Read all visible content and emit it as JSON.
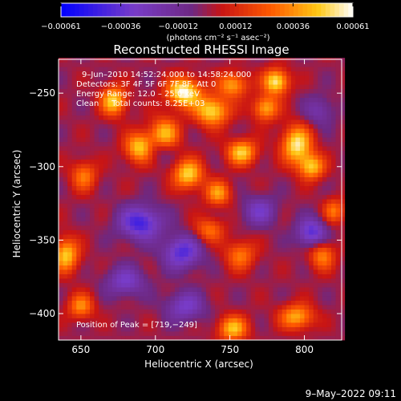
{
  "chart_data": {
    "type": "heatmap",
    "title": "Reconstructed RHESSI Image",
    "xlabel": "Heliocentric X (arcsec)",
    "ylabel": "Heliocentric Y (arcsec)",
    "xlim": [
      635,
      825
    ],
    "ylim": [
      -418,
      -227
    ],
    "xticks": [
      650,
      700,
      750,
      800
    ],
    "yticks": [
      -250,
      -300,
      -350,
      -400
    ],
    "xtick_labels": [
      "650",
      "700",
      "750",
      "800"
    ],
    "ytick_labels": [
      "−250",
      "−300",
      "−350",
      "−400"
    ],
    "colorbar": {
      "range": [
        -0.00061,
        0.00061
      ],
      "ticks": [
        -0.00061,
        -0.00036,
        -0.00012,
        0.00012,
        0.00036,
        0.00061
      ],
      "tick_labels": [
        "−0.00061",
        "−0.00036",
        "−0.00012",
        "0.00012",
        "0.00036",
        "0.00061"
      ],
      "unit_label": "(photons cm⁻² s⁻¹ asec⁻²)"
    },
    "annotations": {
      "time_range": "9–Jun–2010 14:52:24.000 to 14:58:24.000",
      "detectors": "Detectors: 3F 4F 5F 6F 7F 8F, Att 0",
      "energy_range": "Energy Range: 12.0 – 25.0 keV",
      "algorithm": "Clean     Total counts: 8.25E+03",
      "peak": "Position of Peak = [719,−249]"
    },
    "peak": {
      "x": 719,
      "y": -249
    },
    "sources": [
      {
        "x": 672,
        "y": -255,
        "amp": 0.0005,
        "sx": 6,
        "sy": 7
      },
      {
        "x": 690,
        "y": -287,
        "amp": 0.00055,
        "sx": 7,
        "sy": 7
      },
      {
        "x": 706,
        "y": -278,
        "amp": 0.00045,
        "sx": 7,
        "sy": 8
      },
      {
        "x": 719,
        "y": -249,
        "amp": 0.00061,
        "sx": 8,
        "sy": 7
      },
      {
        "x": 738,
        "y": -262,
        "amp": 0.00052,
        "sx": 8,
        "sy": 7
      },
      {
        "x": 752,
        "y": -244,
        "amp": 0.0004,
        "sx": 7,
        "sy": 6
      },
      {
        "x": 781,
        "y": -242,
        "amp": 0.00056,
        "sx": 6,
        "sy": 6
      },
      {
        "x": 774,
        "y": -260,
        "amp": 0.00042,
        "sx": 6,
        "sy": 6
      },
      {
        "x": 758,
        "y": -290,
        "amp": 0.00048,
        "sx": 7,
        "sy": 6
      },
      {
        "x": 795,
        "y": -285,
        "amp": 0.00055,
        "sx": 7,
        "sy": 9
      },
      {
        "x": 805,
        "y": -300,
        "amp": 0.00045,
        "sx": 6,
        "sy": 6
      },
      {
        "x": 722,
        "y": -305,
        "amp": 0.0005,
        "sx": 7,
        "sy": 7
      },
      {
        "x": 742,
        "y": -318,
        "amp": 0.00038,
        "sx": 6,
        "sy": 6
      },
      {
        "x": 652,
        "y": -306,
        "amp": 0.00032,
        "sx": 6,
        "sy": 7
      },
      {
        "x": 640,
        "y": -360,
        "amp": 0.00048,
        "sx": 6,
        "sy": 8
      },
      {
        "x": 650,
        "y": -395,
        "amp": 0.00035,
        "sx": 6,
        "sy": 6
      },
      {
        "x": 736,
        "y": -343,
        "amp": 0.0003,
        "sx": 7,
        "sy": 6
      },
      {
        "x": 757,
        "y": -360,
        "amp": 0.00032,
        "sx": 7,
        "sy": 7
      },
      {
        "x": 752,
        "y": -410,
        "amp": 0.00045,
        "sx": 7,
        "sy": 6
      },
      {
        "x": 795,
        "y": -402,
        "amp": 0.00042,
        "sx": 8,
        "sy": 6
      },
      {
        "x": 812,
        "y": -360,
        "amp": 0.00035,
        "sx": 6,
        "sy": 7
      },
      {
        "x": 820,
        "y": -330,
        "amp": 0.0003,
        "sx": 5,
        "sy": 6
      },
      {
        "x": 690,
        "y": -338,
        "amp": -0.00045,
        "sx": 10,
        "sy": 8
      },
      {
        "x": 700,
        "y": -288,
        "amp": -0.00022,
        "sx": 8,
        "sy": 6
      },
      {
        "x": 718,
        "y": -358,
        "amp": -0.0004,
        "sx": 9,
        "sy": 8
      },
      {
        "x": 805,
        "y": -345,
        "amp": -0.0004,
        "sx": 7,
        "sy": 7
      },
      {
        "x": 680,
        "y": -378,
        "amp": -0.0003,
        "sx": 9,
        "sy": 7
      },
      {
        "x": 720,
        "y": -395,
        "amp": -0.0003,
        "sx": 9,
        "sy": 7
      },
      {
        "x": 770,
        "y": -330,
        "amp": -0.00028,
        "sx": 8,
        "sy": 7
      },
      {
        "x": 810,
        "y": -262,
        "amp": -0.0002,
        "sx": 7,
        "sy": 7
      }
    ]
  },
  "footer": {
    "timestamp": "9–May–2022 09:11"
  }
}
